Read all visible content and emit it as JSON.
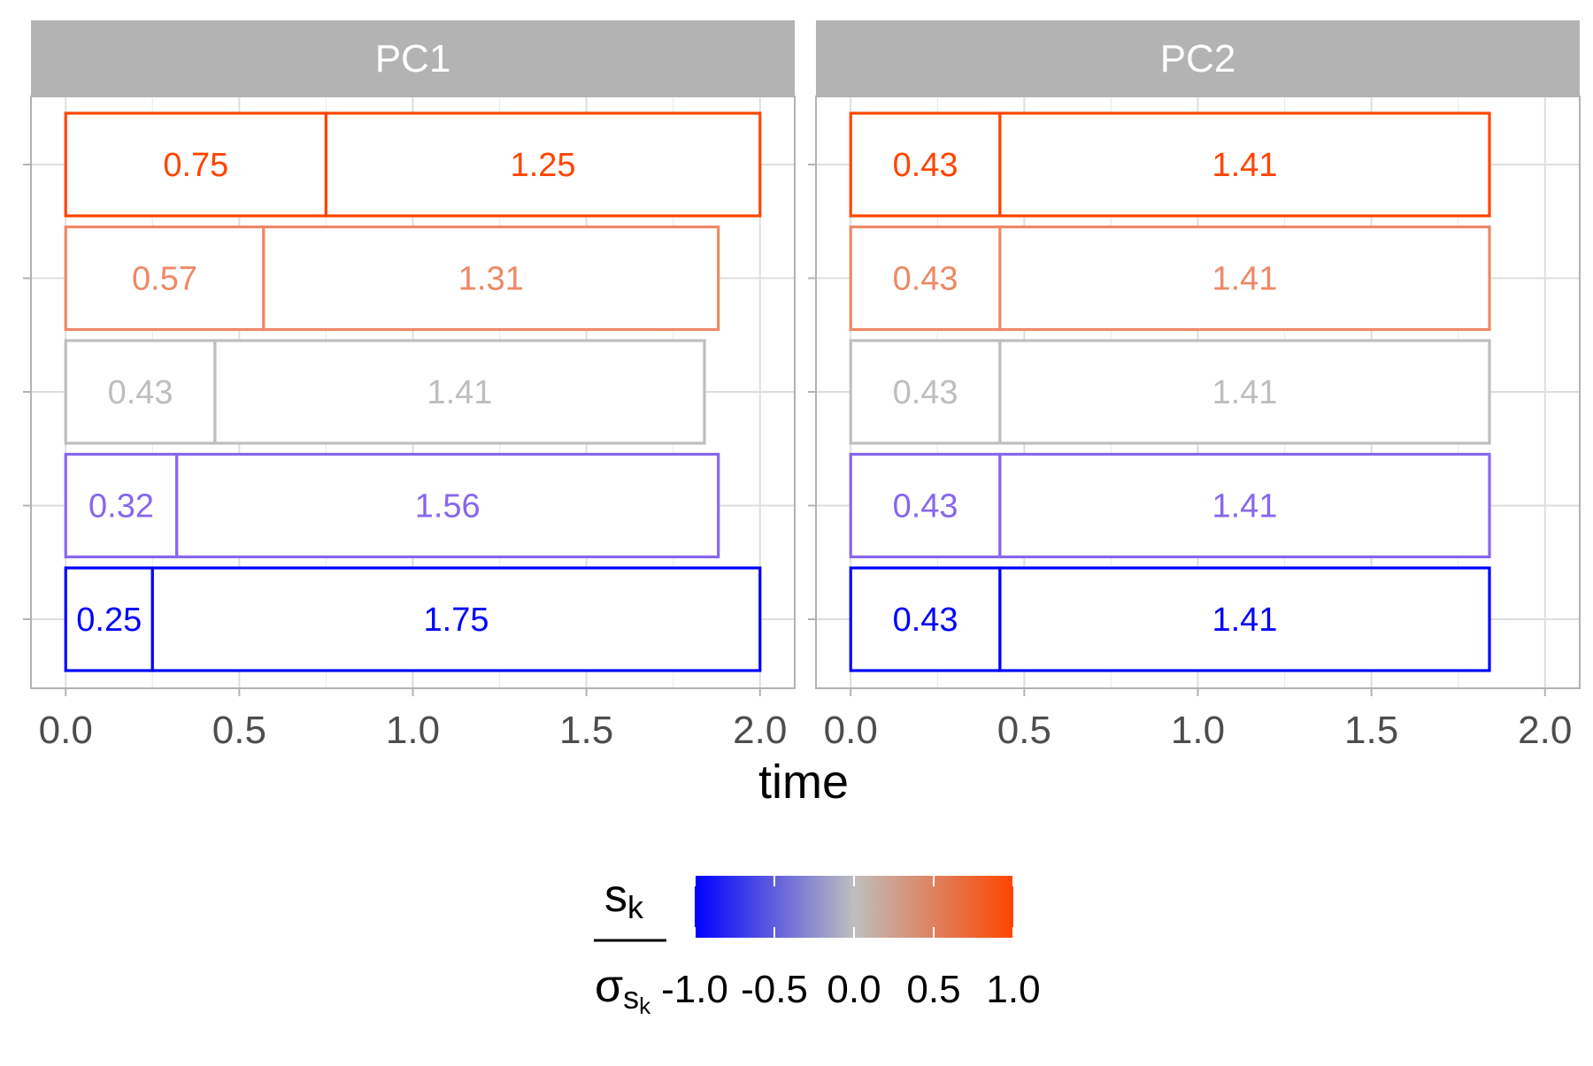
{
  "chart_data": {
    "type": "bar",
    "orientation": "horizontal",
    "stacked": true,
    "xlabel": "time",
    "xlim": [
      -0.1,
      2.1
    ],
    "xticks": [
      0.0,
      0.5,
      1.0,
      1.5,
      2.0
    ],
    "xtick_labels": [
      "0.0",
      "0.5",
      "1.0",
      "1.5",
      "2.0"
    ],
    "grid": true,
    "legend_position": "bottom",
    "panels": [
      {
        "title": "PC1",
        "rows": [
          {
            "score": 1.0,
            "color": "#FF4500",
            "segments": [
              0.75,
              1.25
            ],
            "labels": [
              "0.75",
              "1.25"
            ]
          },
          {
            "score": 0.5,
            "color": "#EE8866",
            "segments": [
              0.57,
              1.31
            ],
            "labels": [
              "0.57",
              "1.31"
            ]
          },
          {
            "score": 0.0,
            "color": "#BEBEBE",
            "segments": [
              0.43,
              1.41
            ],
            "labels": [
              "0.43",
              "1.41"
            ]
          },
          {
            "score": -0.5,
            "color": "#8866EE",
            "segments": [
              0.32,
              1.56
            ],
            "labels": [
              "0.32",
              "1.56"
            ]
          },
          {
            "score": -1.0,
            "color": "#0000FF",
            "segments": [
              0.25,
              1.75
            ],
            "labels": [
              "0.25",
              "1.75"
            ]
          }
        ]
      },
      {
        "title": "PC2",
        "rows": [
          {
            "score": 1.0,
            "color": "#FF4500",
            "segments": [
              0.43,
              1.41
            ],
            "labels": [
              "0.43",
              "1.41"
            ]
          },
          {
            "score": 0.5,
            "color": "#EE8866",
            "segments": [
              0.43,
              1.41
            ],
            "labels": [
              "0.43",
              "1.41"
            ]
          },
          {
            "score": 0.0,
            "color": "#BEBEBE",
            "segments": [
              0.43,
              1.41
            ],
            "labels": [
              "0.43",
              "1.41"
            ]
          },
          {
            "score": -0.5,
            "color": "#8866EE",
            "segments": [
              0.43,
              1.41
            ],
            "labels": [
              "0.43",
              "1.41"
            ]
          },
          {
            "score": -1.0,
            "color": "#0000FF",
            "segments": [
              0.43,
              1.41
            ],
            "labels": [
              "0.43",
              "1.41"
            ]
          }
        ]
      }
    ],
    "legend": {
      "title_numerator": "s",
      "title_numerator_sub": "k",
      "title_denominator": "σ",
      "title_denominator_sub": "s",
      "title_denominator_subsub": "k",
      "scale": [
        -1.0,
        1.0
      ],
      "colors": {
        "low": "#0000FF",
        "mid": "#BEBEBE",
        "high": "#FF4500"
      },
      "ticks": [
        -1.0,
        -0.5,
        0.0,
        0.5,
        1.0
      ],
      "tick_labels": [
        "-1.0",
        "-0.5",
        "0.0",
        "0.5",
        "1.0"
      ]
    }
  }
}
